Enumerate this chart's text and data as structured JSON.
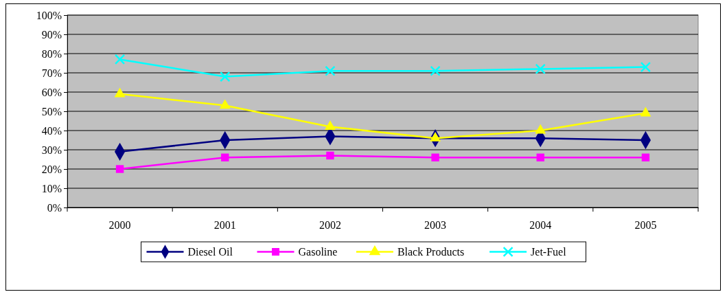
{
  "chart_data": {
    "type": "line",
    "categories": [
      "2000",
      "2001",
      "2002",
      "2003",
      "2004",
      "2005"
    ],
    "series": [
      {
        "name": "Diesel Oil",
        "color": "#000080",
        "marker": "diamond",
        "values": [
          29,
          35,
          37,
          36,
          36,
          35
        ]
      },
      {
        "name": "Gasoline",
        "color": "#ff00ff",
        "marker": "square",
        "values": [
          20,
          26,
          27,
          26,
          26,
          26
        ]
      },
      {
        "name": "Black Products",
        "color": "#ffff00",
        "marker": "triangle",
        "values": [
          59,
          53,
          42,
          36,
          40,
          49
        ]
      },
      {
        "name": "Jet-Fuel",
        "color": "#00ffff",
        "marker": "cross",
        "values": [
          77,
          68,
          71,
          71,
          72,
          73
        ]
      }
    ],
    "ylim": [
      0,
      100
    ],
    "yticks": [
      {
        "value": 0,
        "label": "0%"
      },
      {
        "value": 10,
        "label": "10%"
      },
      {
        "value": 20,
        "label": "20%"
      },
      {
        "value": 30,
        "label": "30%"
      },
      {
        "value": 40,
        "label": "40%"
      },
      {
        "value": 50,
        "label": "50%"
      },
      {
        "value": 60,
        "label": "60%"
      },
      {
        "value": 70,
        "label": "70%"
      },
      {
        "value": 80,
        "label": "80%"
      },
      {
        "value": 90,
        "label": "90%"
      },
      {
        "value": 100,
        "label": "100%"
      }
    ],
    "grid": "y",
    "legend": "bottom"
  }
}
